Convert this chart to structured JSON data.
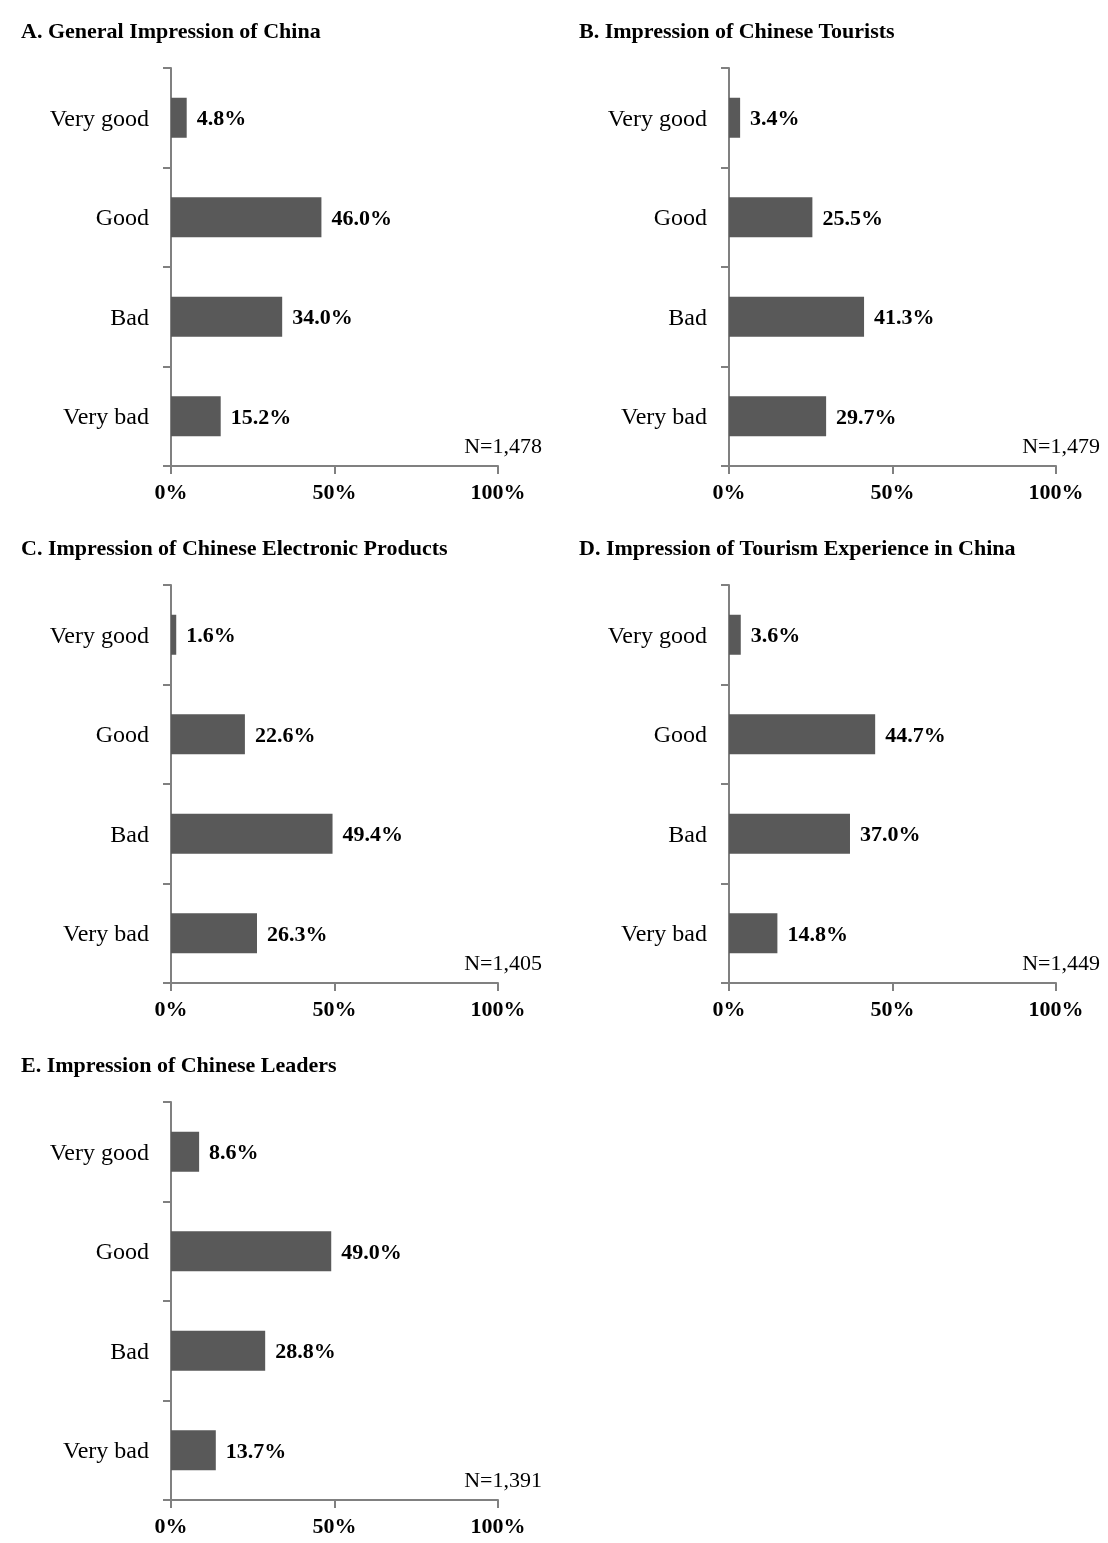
{
  "chart_data": [
    {
      "type": "bar",
      "orientation": "horizontal",
      "title": "A. General Impression of China",
      "categories": [
        "Very good",
        "Good",
        "Bad",
        "Very bad"
      ],
      "values": [
        4.8,
        46.0,
        34.0,
        15.2
      ],
      "color": "#595959",
      "value_labels": [
        "4.8%",
        "46.0%",
        "34.0%",
        "15.2%"
      ],
      "xlim": [
        0,
        100
      ],
      "xticks": [
        {
          "value": 0,
          "label": "0%"
        },
        {
          "value": 50,
          "label": "50%"
        },
        {
          "value": 100,
          "label": "100%"
        }
      ],
      "annotations": [
        "N=1,478"
      ]
    },
    {
      "type": "bar",
      "orientation": "horizontal",
      "title": "B. Impression of Chinese Tourists",
      "categories": [
        "Very good",
        "Good",
        "Bad",
        "Very bad"
      ],
      "values": [
        3.4,
        25.5,
        41.3,
        29.7
      ],
      "color": "#595959",
      "value_labels": [
        "3.4%",
        "25.5%",
        "41.3%",
        "29.7%"
      ],
      "xlim": [
        0,
        100
      ],
      "xticks": [
        {
          "value": 0,
          "label": "0%"
        },
        {
          "value": 50,
          "label": "50%"
        },
        {
          "value": 100,
          "label": "100%"
        }
      ],
      "annotations": [
        "N=1,479"
      ]
    },
    {
      "type": "bar",
      "orientation": "horizontal",
      "title": "C. Impression of Chinese Electronic Products",
      "categories": [
        "Very good",
        "Good",
        "Bad",
        "Very bad"
      ],
      "values": [
        1.6,
        22.6,
        49.4,
        26.3
      ],
      "color": "#595959",
      "value_labels": [
        "1.6%",
        "22.6%",
        "49.4%",
        "26.3%"
      ],
      "xlim": [
        0,
        100
      ],
      "xticks": [
        {
          "value": 0,
          "label": "0%"
        },
        {
          "value": 50,
          "label": "50%"
        },
        {
          "value": 100,
          "label": "100%"
        }
      ],
      "annotations": [
        "N=1,405"
      ]
    },
    {
      "type": "bar",
      "orientation": "horizontal",
      "title": "D. Impression of Tourism Experience in China",
      "categories": [
        "Very good",
        "Good",
        "Bad",
        "Very bad"
      ],
      "values": [
        3.6,
        44.7,
        37.0,
        14.8
      ],
      "color": "#595959",
      "value_labels": [
        "3.6%",
        "44.7%",
        "37.0%",
        "14.8%"
      ],
      "xlim": [
        0,
        100
      ],
      "xticks": [
        {
          "value": 0,
          "label": "0%"
        },
        {
          "value": 50,
          "label": "50%"
        },
        {
          "value": 100,
          "label": "100%"
        }
      ],
      "annotations": [
        "N=1,449"
      ]
    },
    {
      "type": "bar",
      "orientation": "horizontal",
      "title": "E. Impression of Chinese Leaders",
      "categories": [
        "Very good",
        "Good",
        "Bad",
        "Very bad"
      ],
      "values": [
        8.6,
        49.0,
        28.8,
        13.7
      ],
      "color": "#595959",
      "value_labels": [
        "8.6%",
        "49.0%",
        "28.8%",
        "13.7%"
      ],
      "xlim": [
        0,
        100
      ],
      "xticks": [
        {
          "value": 0,
          "label": "0%"
        },
        {
          "value": 50,
          "label": "50%"
        },
        {
          "value": 100,
          "label": "100%"
        }
      ],
      "annotations": [
        "N=1,391"
      ]
    }
  ]
}
